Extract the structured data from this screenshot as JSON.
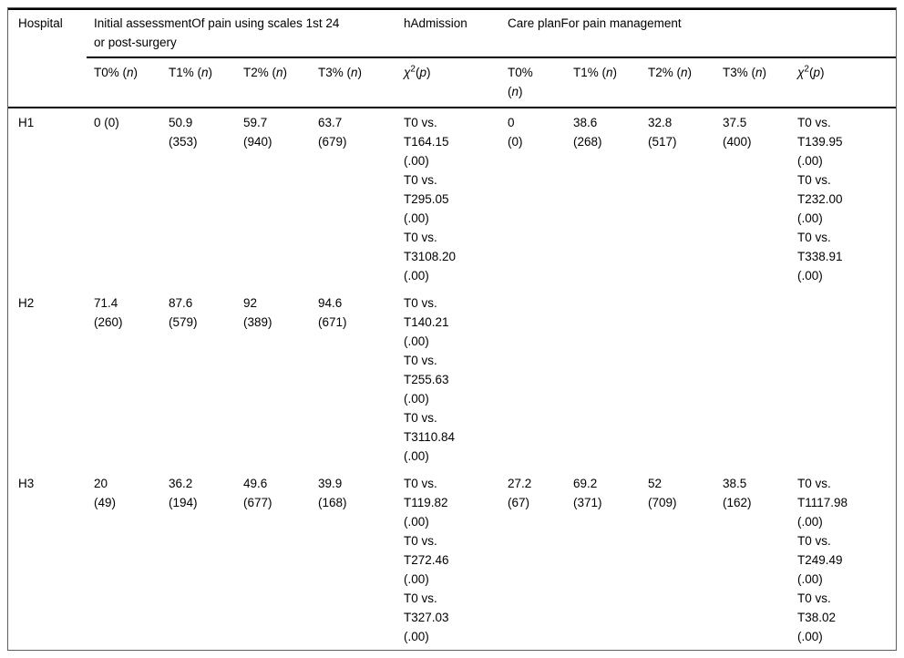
{
  "colors": {
    "background": "#ffffff",
    "text": "#000000",
    "rule": "#000000",
    "frame_border": "#5f5f5f"
  },
  "table": {
    "col1_header": "Hospital",
    "group1": "Initial assessmentOf pain using scales 1st 24\nor post-surgery",
    "group_mid": "hAdmission",
    "group2": "Care planFor pain management",
    "subheaders": [
      {
        "parts": [
          [
            "T0% (",
            ""
          ],
          [
            "n",
            "i"
          ],
          [
            ")",
            ""
          ]
        ]
      },
      {
        "parts": [
          [
            "T1% (",
            ""
          ],
          [
            "n",
            "i"
          ],
          [
            ")",
            ""
          ]
        ]
      },
      {
        "parts": [
          [
            "T2% (",
            ""
          ],
          [
            "n",
            "i"
          ],
          [
            ")",
            ""
          ]
        ]
      },
      {
        "parts": [
          [
            "T3% (",
            ""
          ],
          [
            "n",
            "i"
          ],
          [
            ")",
            ""
          ]
        ]
      },
      {
        "parts": [
          [
            "χ",
            "i"
          ],
          [
            "2",
            "sup"
          ],
          [
            "(",
            ""
          ],
          [
            "p",
            "i"
          ],
          [
            ")",
            ""
          ]
        ]
      },
      {
        "parts": [
          [
            "T0%\n(",
            ""
          ],
          [
            "n",
            "i"
          ],
          [
            ")",
            ""
          ]
        ]
      },
      {
        "parts": [
          [
            "T1% (",
            ""
          ],
          [
            "n",
            "i"
          ],
          [
            ")",
            ""
          ]
        ]
      },
      {
        "parts": [
          [
            "T2% (",
            ""
          ],
          [
            "n",
            "i"
          ],
          [
            ")",
            ""
          ]
        ]
      },
      {
        "parts": [
          [
            "T3% (",
            ""
          ],
          [
            "n",
            "i"
          ],
          [
            ")",
            ""
          ]
        ]
      },
      {
        "parts": [
          [
            "χ",
            "i"
          ],
          [
            "2",
            "sup"
          ],
          [
            "(",
            ""
          ],
          [
            "p",
            "i"
          ],
          [
            ")",
            ""
          ]
        ]
      }
    ],
    "rows": [
      {
        "hospital": "H1",
        "cells": [
          "0 (0)",
          "50.9\n(353)",
          "59.7\n(940)",
          "63.7\n(679)",
          "T0 vs.\nT164.15\n(.00)\nT0 vs.\nT295.05\n(.00)\nT0 vs.\nT3108.20\n(.00)",
          "0\n(0)",
          "38.6\n(268)",
          "32.8\n(517)",
          "37.5\n(400)",
          "T0 vs.\nT139.95\n(.00)\nT0 vs.\nT232.00\n(.00)\nT0 vs.\nT338.91\n(.00)"
        ]
      },
      {
        "hospital": "H2",
        "cells": [
          "71.4\n(260)",
          "87.6\n(579)",
          "92\n(389)",
          "94.6\n(671)",
          "T0 vs.\nT140.21\n(.00)\nT0 vs.\nT255.63\n(.00)\nT0 vs.\nT3110.84\n(.00)",
          "",
          "",
          "",
          "",
          ""
        ]
      },
      {
        "hospital": "H3",
        "cells": [
          "20\n(49)",
          "36.2\n(194)",
          "49.6\n(677)",
          "39.9\n(168)",
          "T0 vs.\nT119.82\n(.00)\nT0 vs.\nT272.46\n(.00)\nT0 vs.\nT327.03\n(.00)",
          "27.2\n(67)",
          "69.2\n(371)",
          "52\n(709)",
          "38.5\n(162)",
          "T0 vs.\nT1117.98\n(.00)\nT0 vs.\nT249.49\n(.00)\nT0 vs.\nT38.02\n(.00)"
        ]
      }
    ]
  }
}
